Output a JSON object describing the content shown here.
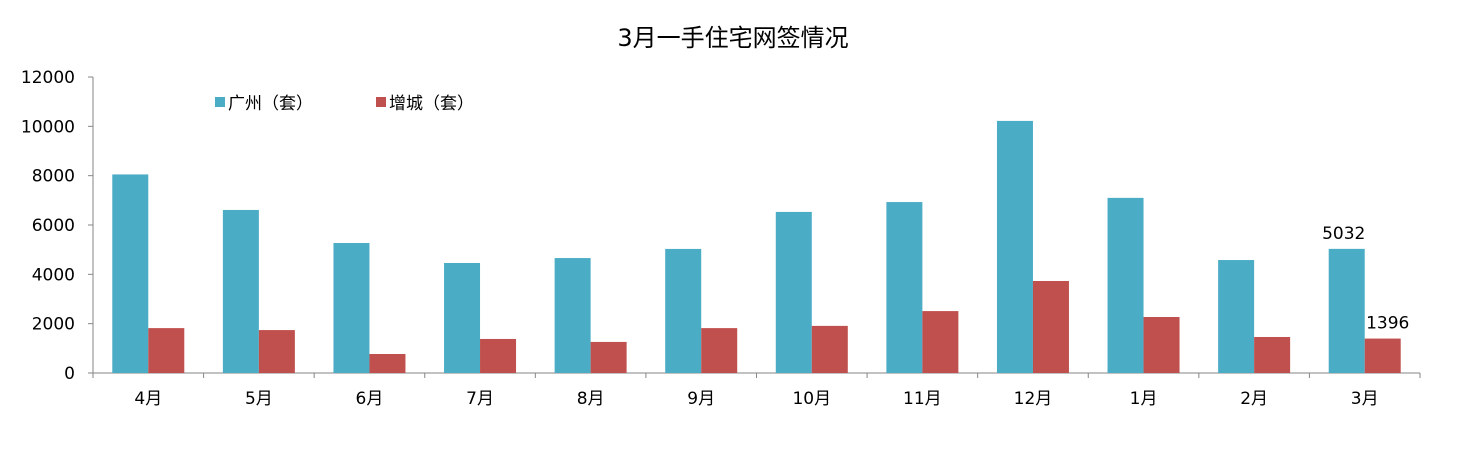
{
  "chart_data": {
    "type": "bar",
    "title": "3月一手住宅网签情况",
    "xlabel": "",
    "ylabel": "",
    "ylim": [
      0,
      12000
    ],
    "yticks": [
      0,
      2000,
      4000,
      6000,
      8000,
      10000,
      12000
    ],
    "grid": false,
    "legend_position": "top-left",
    "categories": [
      "4月",
      "5月",
      "6月",
      "7月",
      "8月",
      "9月",
      "10月",
      "11月",
      "12月",
      "1月",
      "2月",
      "3月"
    ],
    "series": [
      {
        "name": "广州（套）",
        "color": "#4BACC6",
        "values": [
          8050,
          6610,
          5270,
          4460,
          4660,
          5030,
          6530,
          6930,
          10220,
          7100,
          4580,
          5032
        ]
      },
      {
        "name": "增城（套）",
        "color": "#C0504D",
        "values": [
          1820,
          1740,
          770,
          1380,
          1260,
          1820,
          1910,
          2510,
          3730,
          2270,
          1460,
          1396
        ]
      }
    ],
    "data_labels": [
      {
        "series": 0,
        "category": "3月",
        "text": "5032"
      },
      {
        "series": 1,
        "category": "3月",
        "text": "1396"
      }
    ]
  }
}
